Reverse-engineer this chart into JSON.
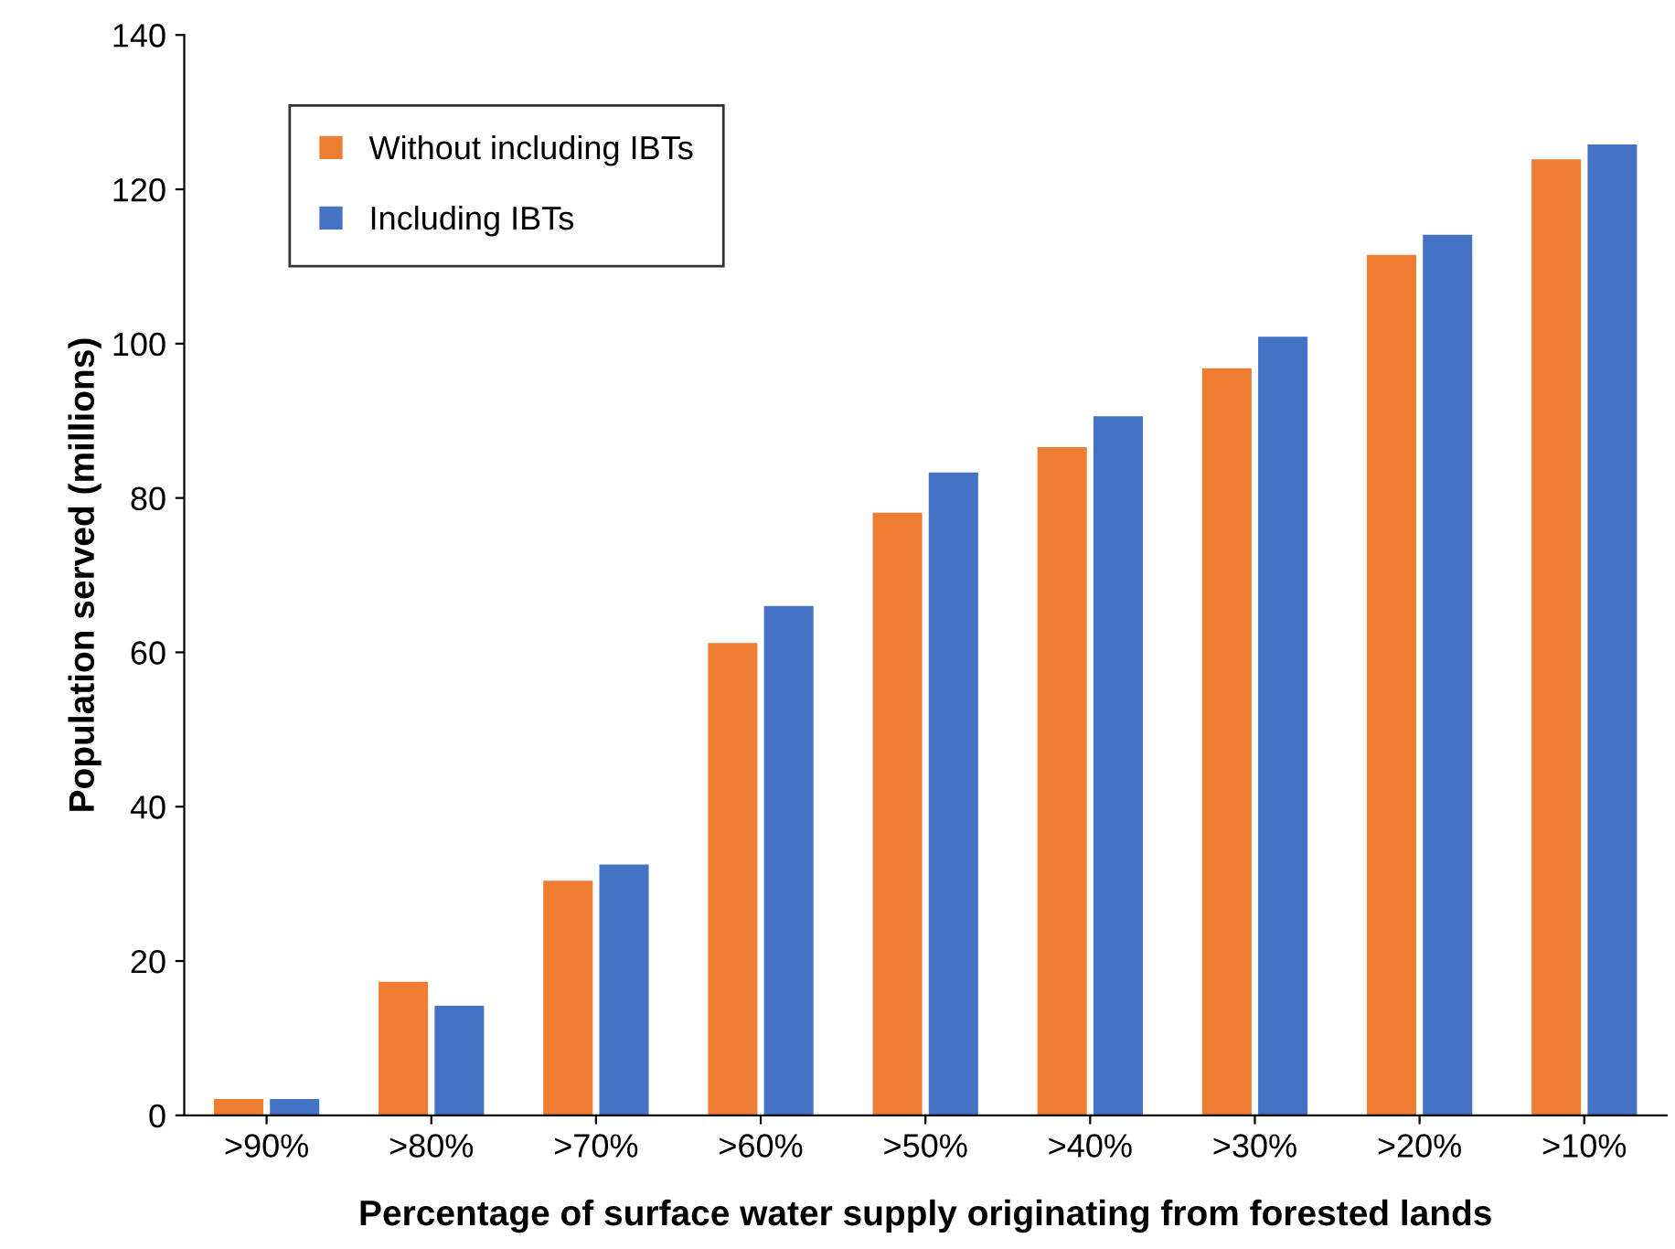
{
  "chart_data": {
    "type": "bar",
    "xlabel": "Percentage of surface water supply originating from forested lands",
    "ylabel": "Population served (millions)",
    "categories": [
      ">90%",
      ">80%",
      ">70%",
      ">60%",
      ">50%",
      ">40%",
      ">30%",
      ">20%",
      ">10%"
    ],
    "series": [
      {
        "name": "Without including IBTs",
        "color": "#ed7d31",
        "values": [
          2.1,
          17.3,
          30.4,
          61.2,
          78.1,
          86.6,
          96.8,
          111.5,
          123.9
        ]
      },
      {
        "name": "Including IBTs",
        "color": "#4472c4",
        "values": [
          2.1,
          14.2,
          32.5,
          66.0,
          83.3,
          90.6,
          100.9,
          114.1,
          125.8
        ]
      }
    ],
    "ylim": [
      0,
      140
    ],
    "yticks": [
      0,
      20,
      40,
      60,
      80,
      100,
      120,
      140
    ],
    "grid": false,
    "legend": "top left"
  }
}
